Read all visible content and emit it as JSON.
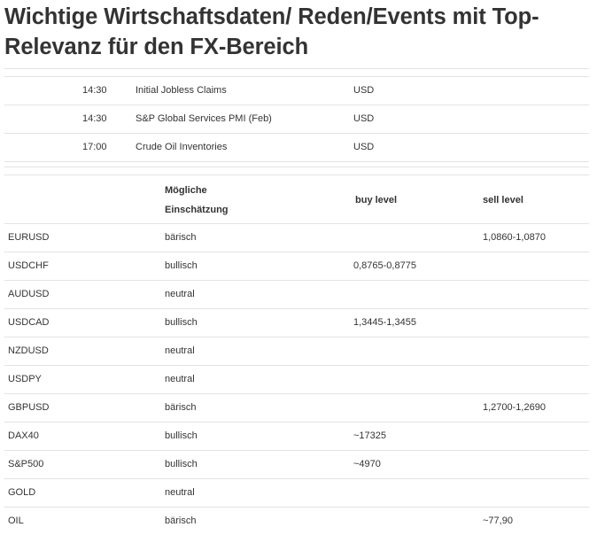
{
  "title": "Wichtige Wirtschaftsdaten/ Reden/Events mit Top-Relevanz für den FX-Bereich",
  "events": [
    {
      "time": "14:30",
      "name": "Initial Jobless Claims",
      "currency": "USD"
    },
    {
      "time": "14:30",
      "name": "S&P Global Services PMI (Feb)",
      "currency": "USD"
    },
    {
      "time": "17:00",
      "name": "Crude Oil Inventories",
      "currency": "USD"
    }
  ],
  "levels": {
    "headers": {
      "assessment": "Mögliche Einschätzung",
      "buy": "buy level",
      "sell": "sell level"
    },
    "rows": [
      {
        "asset": "EURUSD",
        "view": "bärisch",
        "buy": "",
        "sell": "1,0860-1,0870"
      },
      {
        "asset": "USDCHF",
        "view": "bullisch",
        "buy": "0,8765-0,8775",
        "sell": ""
      },
      {
        "asset": "AUDUSD",
        "view": "neutral",
        "buy": "",
        "sell": ""
      },
      {
        "asset": "USDCAD",
        "view": "bullisch",
        "buy": "1,3445-1,3455",
        "sell": ""
      },
      {
        "asset": "NZDUSD",
        "view": "neutral",
        "buy": "",
        "sell": ""
      },
      {
        "asset": "USDPY",
        "view": "neutral",
        "buy": "",
        "sell": ""
      },
      {
        "asset": "GBPUSD",
        "view": "bärisch",
        "buy": "",
        "sell": "1,2700-1,2690"
      },
      {
        "asset": "DAX40",
        "view": "bullisch",
        "buy": "~17325",
        "sell": ""
      },
      {
        "asset": "S&P500",
        "view": "bullisch",
        "buy": "~4970",
        "sell": ""
      },
      {
        "asset": "GOLD",
        "view": "neutral",
        "buy": "",
        "sell": ""
      },
      {
        "asset": "OIL",
        "view": "bärisch",
        "buy": "",
        "sell": "~77,90"
      }
    ]
  }
}
